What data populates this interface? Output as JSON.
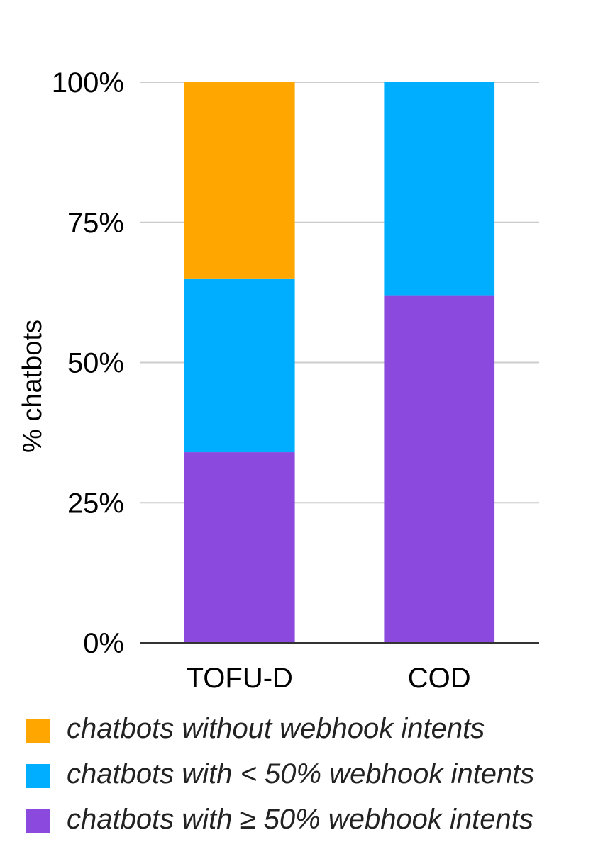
{
  "chart_data": {
    "type": "bar",
    "stacked": true,
    "categories": [
      "TOFU-D",
      "COD"
    ],
    "ylabel": "% chatbots",
    "xlabel": "",
    "ylim": [
      0,
      100
    ],
    "yticks": [
      0,
      25,
      50,
      75,
      100
    ],
    "ytick_labels": [
      "0%",
      "25%",
      "50%",
      "75%",
      "100%"
    ],
    "grid": true,
    "legend_position": "bottom",
    "series": [
      {
        "name": "chatbots with ≥ 50% webhook intents",
        "color": "#8b49de",
        "values": [
          34,
          62
        ]
      },
      {
        "name": "chatbots with < 50% webhook intents",
        "color": "#00aeff",
        "values": [
          31,
          38
        ]
      },
      {
        "name": "chatbots without webhook intents",
        "color": "#ffa600",
        "values": [
          35,
          0
        ]
      }
    ]
  },
  "legend": {
    "items": [
      {
        "label": "chatbots without webhook intents",
        "color": "#ffa600"
      },
      {
        "label": "chatbots with < 50% webhook intents",
        "color": "#00aeff"
      },
      {
        "label": "chatbots with ≥ 50% webhook intents",
        "color": "#8b49de"
      }
    ]
  }
}
